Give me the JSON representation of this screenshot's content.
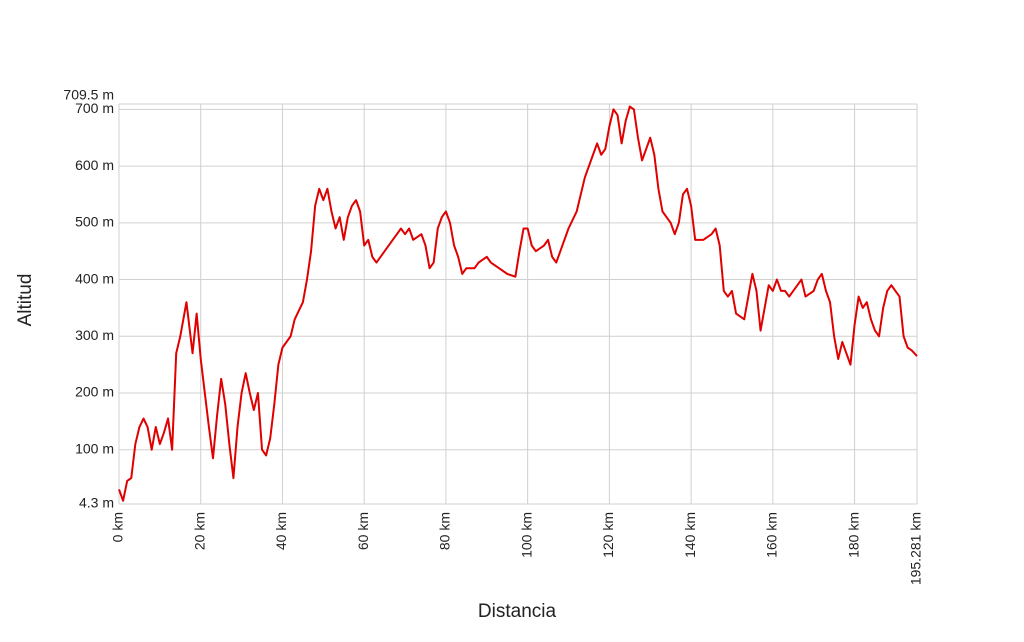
{
  "chart_data": {
    "type": "line",
    "xlabel": "Distancia",
    "ylabel": "Altitud",
    "color": "#e00000",
    "grid": true,
    "xlim": [
      0,
      195.281
    ],
    "ylim": [
      4.3,
      709.5
    ],
    "xticks": [
      {
        "value": 0,
        "label": "0 km"
      },
      {
        "value": 20,
        "label": "20 km"
      },
      {
        "value": 40,
        "label": "40 km"
      },
      {
        "value": 60,
        "label": "60 km"
      },
      {
        "value": 80,
        "label": "80 km"
      },
      {
        "value": 100,
        "label": "100 km"
      },
      {
        "value": 120,
        "label": "120 km"
      },
      {
        "value": 140,
        "label": "140 km"
      },
      {
        "value": 160,
        "label": "160 km"
      },
      {
        "value": 180,
        "label": "180 km"
      },
      {
        "value": 195.281,
        "label": "195.281 km"
      }
    ],
    "yticks": [
      {
        "value": 4.3,
        "label": "4.3 m"
      },
      {
        "value": 100,
        "label": "100 m"
      },
      {
        "value": 200,
        "label": "200 m"
      },
      {
        "value": 300,
        "label": "300 m"
      },
      {
        "value": 400,
        "label": "400 m"
      },
      {
        "value": 500,
        "label": "500 m"
      },
      {
        "value": 600,
        "label": "600 m"
      },
      {
        "value": 700,
        "label": "700 m"
      },
      {
        "value": 709.5,
        "label": "709.5 m"
      }
    ],
    "x": [
      0,
      1,
      2,
      3,
      4,
      5,
      6,
      7,
      8,
      9,
      10,
      11,
      12,
      13,
      14,
      15,
      16,
      16.5,
      17,
      18,
      19,
      20,
      21,
      22,
      23,
      24,
      25,
      26,
      27,
      28,
      29,
      30,
      31,
      32,
      33,
      34,
      35,
      36,
      37,
      38,
      39,
      40,
      42,
      43,
      45,
      46,
      47,
      48,
      49,
      50,
      51,
      52,
      53,
      54,
      55,
      56,
      57,
      58,
      59,
      60,
      61,
      62,
      63,
      65,
      67,
      68,
      69,
      70,
      71,
      72,
      74,
      75,
      76,
      77,
      78,
      79,
      80,
      81,
      82,
      83,
      84,
      85,
      87,
      88,
      90,
      91,
      93,
      95,
      97,
      98,
      99,
      100,
      101,
      102,
      104,
      105,
      106,
      107,
      108,
      110,
      112,
      114,
      116,
      117,
      118,
      119,
      120,
      121,
      122,
      123,
      124,
      125,
      126,
      127,
      128,
      129,
      130,
      131,
      132,
      133,
      134,
      135,
      136,
      137,
      138,
      139,
      140,
      141,
      143,
      145,
      146,
      147,
      148,
      149,
      150,
      151,
      153,
      154,
      155,
      156,
      157,
      158,
      159,
      160,
      161,
      162,
      163,
      164,
      165,
      167,
      168,
      170,
      171,
      172,
      173,
      174,
      175,
      176,
      177,
      178,
      179,
      180,
      181,
      182,
      183,
      184,
      185,
      186,
      187,
      188,
      189,
      190,
      191,
      192,
      193,
      194,
      195.281
    ],
    "values": [
      30,
      10,
      45,
      50,
      110,
      140,
      155,
      140,
      100,
      140,
      110,
      130,
      155,
      100,
      270,
      300,
      340,
      360,
      330,
      270,
      340,
      260,
      200,
      140,
      85,
      160,
      225,
      180,
      110,
      50,
      140,
      200,
      235,
      200,
      170,
      200,
      100,
      90,
      120,
      180,
      250,
      280,
      300,
      330,
      360,
      400,
      450,
      530,
      560,
      540,
      560,
      520,
      490,
      510,
      470,
      510,
      530,
      540,
      520,
      460,
      470,
      440,
      430,
      450,
      470,
      480,
      490,
      480,
      490,
      470,
      480,
      460,
      420,
      430,
      490,
      510,
      520,
      500,
      460,
      440,
      410,
      420,
      420,
      430,
      440,
      430,
      420,
      410,
      405,
      450,
      490,
      490,
      460,
      450,
      460,
      470,
      440,
      430,
      450,
      490,
      520,
      580,
      620,
      640,
      620,
      630,
      670,
      700,
      690,
      640,
      680,
      705,
      700,
      650,
      610,
      630,
      650,
      620,
      560,
      520,
      510,
      500,
      480,
      500,
      550,
      560,
      530,
      470,
      470,
      480,
      490,
      460,
      380,
      370,
      380,
      340,
      330,
      370,
      410,
      380,
      310,
      350,
      390,
      380,
      400,
      380,
      380,
      370,
      380,
      400,
      370,
      380,
      400,
      410,
      380,
      360,
      300,
      260,
      290,
      270,
      250,
      320,
      370,
      350,
      360,
      330,
      310,
      300,
      350,
      380,
      390,
      380,
      370,
      300,
      280,
      275,
      265
    ]
  }
}
